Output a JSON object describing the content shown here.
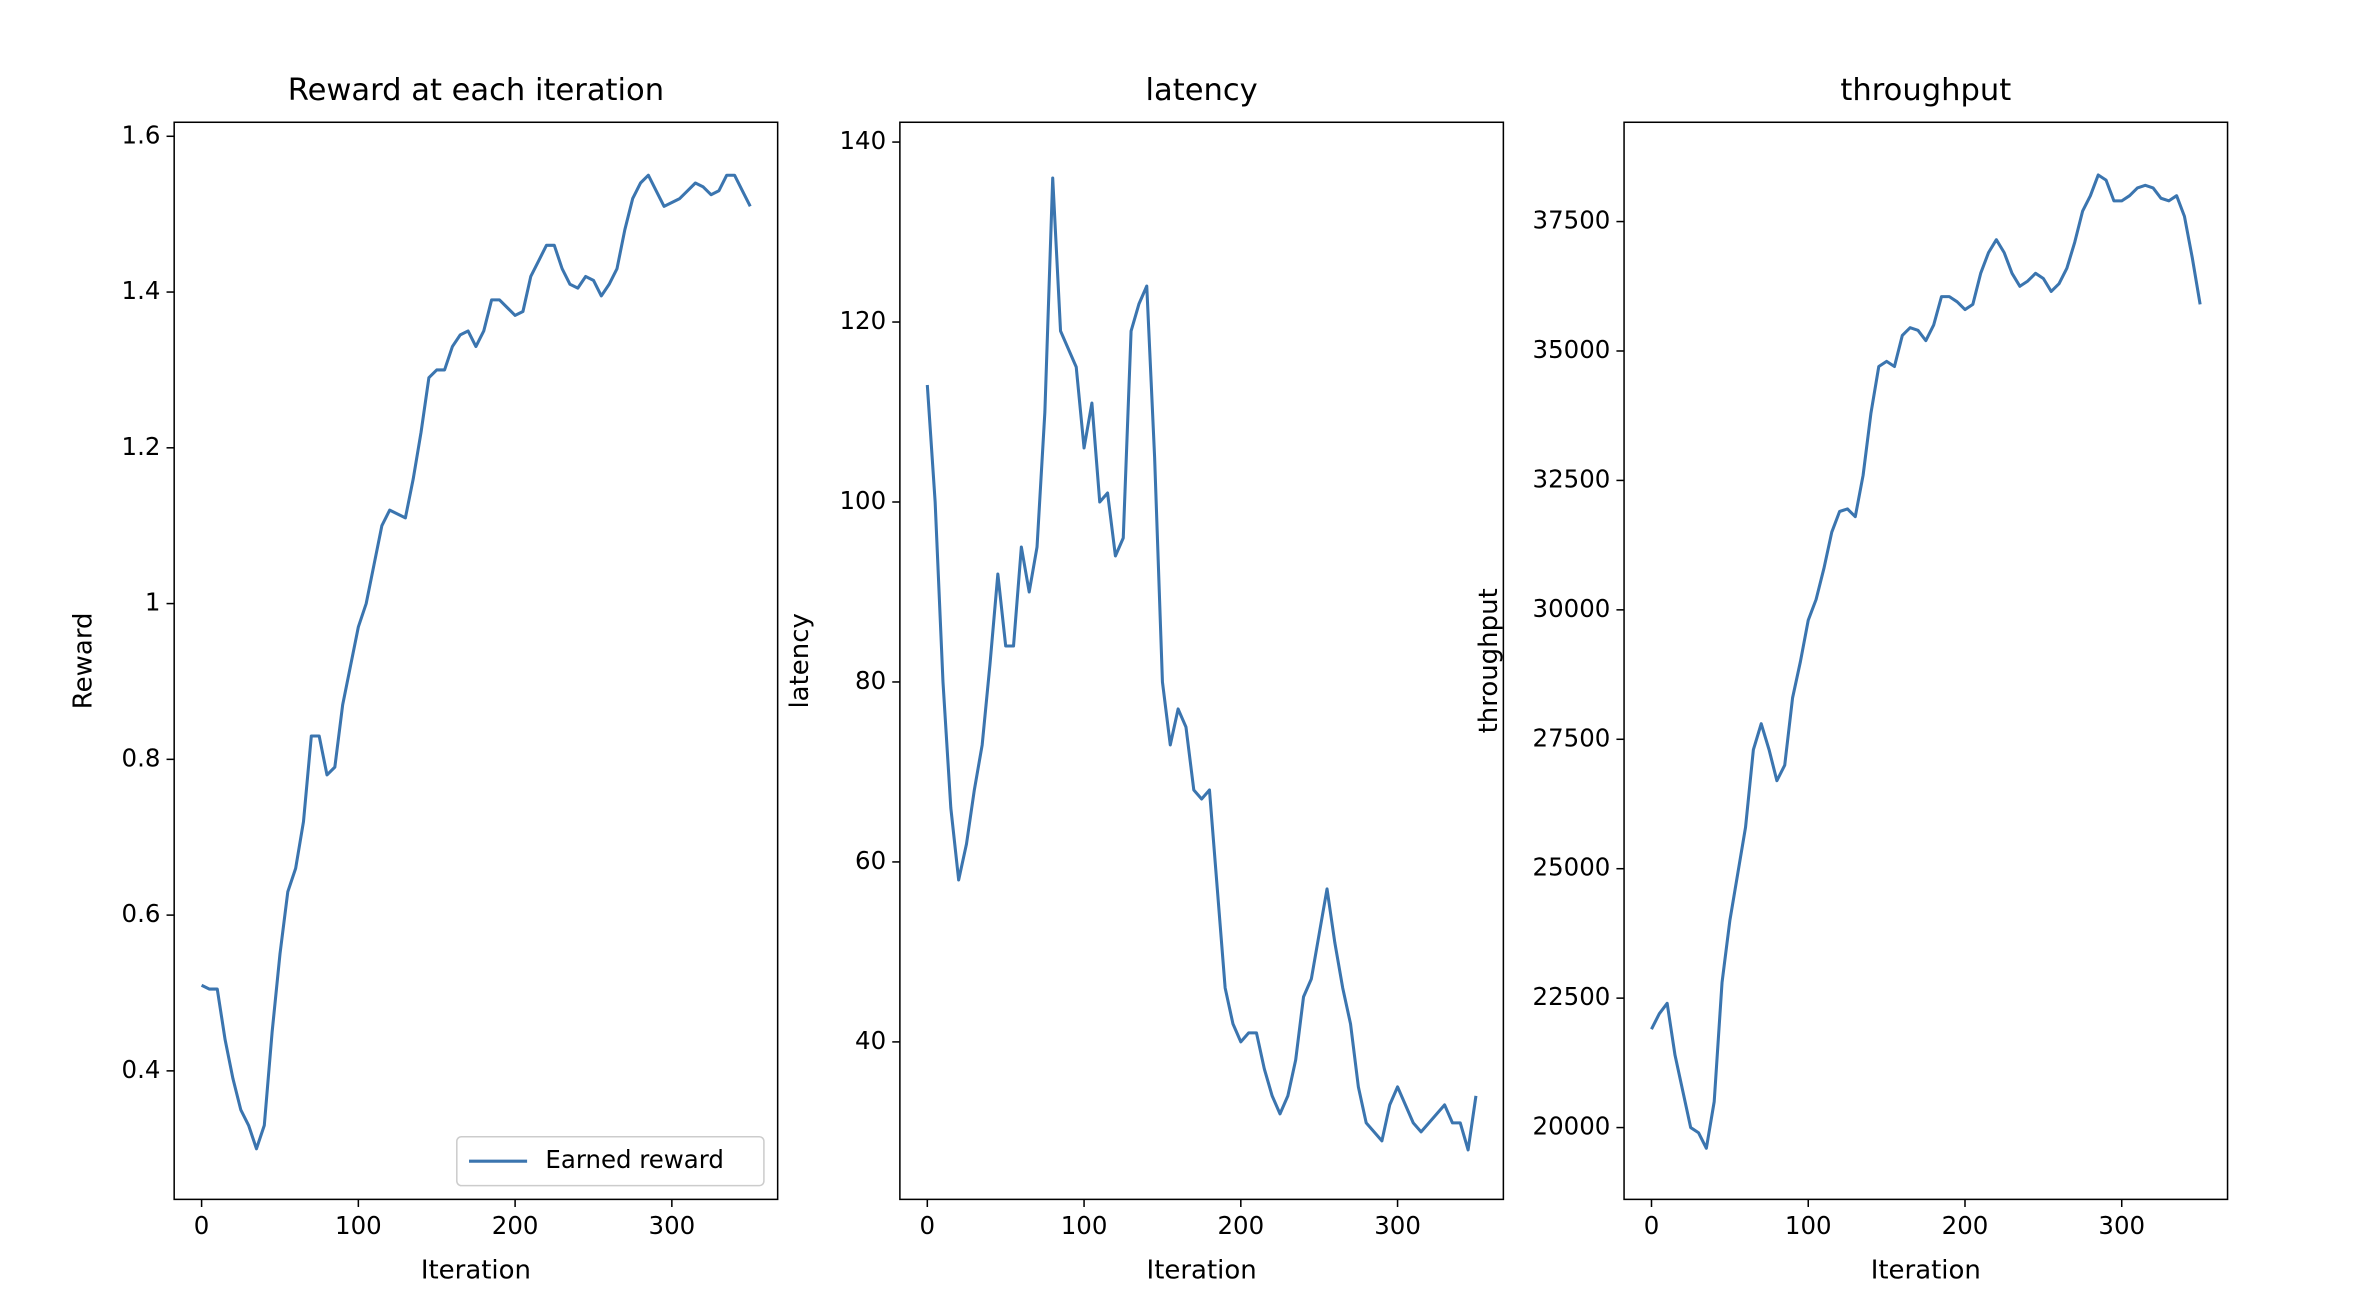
{
  "chart_data": [
    {
      "type": "line",
      "title": "Reward at each iteration",
      "xlabel": "Iteration",
      "ylabel": "Reward",
      "x": [
        0,
        5,
        10,
        15,
        20,
        25,
        30,
        35,
        40,
        45,
        50,
        55,
        60,
        65,
        70,
        75,
        80,
        85,
        90,
        95,
        100,
        105,
        110,
        115,
        120,
        125,
        130,
        135,
        140,
        145,
        150,
        155,
        160,
        165,
        170,
        175,
        180,
        185,
        190,
        195,
        200,
        205,
        210,
        215,
        220,
        225,
        230,
        235,
        240,
        245,
        250,
        255,
        260,
        265,
        270,
        275,
        280,
        285,
        290,
        295,
        300,
        305,
        310,
        315,
        320,
        325,
        330,
        335,
        340,
        345,
        350
      ],
      "series": [
        {
          "name": "Earned reward",
          "color": "#3b75af",
          "values": [
            0.51,
            0.505,
            0.505,
            0.44,
            0.39,
            0.35,
            0.33,
            0.3,
            0.33,
            0.45,
            0.55,
            0.63,
            0.66,
            0.72,
            0.83,
            0.83,
            0.78,
            0.79,
            0.87,
            0.92,
            0.97,
            1.0,
            1.05,
            1.1,
            1.12,
            1.115,
            1.11,
            1.16,
            1.22,
            1.29,
            1.3,
            1.3,
            1.33,
            1.345,
            1.35,
            1.33,
            1.35,
            1.39,
            1.39,
            1.38,
            1.37,
            1.375,
            1.42,
            1.44,
            1.46,
            1.46,
            1.43,
            1.41,
            1.405,
            1.42,
            1.415,
            1.395,
            1.41,
            1.43,
            1.48,
            1.52,
            1.54,
            1.55,
            1.53,
            1.51,
            1.515,
            1.52,
            1.53,
            1.54,
            1.535,
            1.525,
            1.53,
            1.55,
            1.55,
            1.53,
            1.51
          ]
        }
      ],
      "xlim": [
        -17.5,
        367.5
      ],
      "xticks": [
        0,
        100,
        200,
        300
      ],
      "ylim": [
        0.235,
        1.618
      ],
      "yticks": [
        0.4,
        0.6,
        0.8,
        1.0,
        1.2,
        1.4,
        1.6
      ],
      "legend": "lower right"
    },
    {
      "type": "line",
      "title": "latency",
      "xlabel": "Iteration",
      "ylabel": "latency",
      "x": [
        0,
        5,
        10,
        15,
        20,
        25,
        30,
        35,
        40,
        45,
        50,
        55,
        60,
        65,
        70,
        75,
        80,
        85,
        90,
        95,
        100,
        105,
        110,
        115,
        120,
        125,
        130,
        135,
        140,
        145,
        150,
        155,
        160,
        165,
        170,
        175,
        180,
        185,
        190,
        195,
        200,
        205,
        210,
        215,
        220,
        225,
        230,
        235,
        240,
        245,
        250,
        255,
        260,
        265,
        270,
        275,
        280,
        285,
        290,
        295,
        300,
        305,
        310,
        315,
        320,
        325,
        330,
        335,
        340,
        345,
        350
      ],
      "series": [
        {
          "color": "#3b75af",
          "values": [
            113,
            100,
            80,
            66,
            58,
            62,
            68,
            73,
            82,
            92,
            84,
            84,
            95,
            90,
            95,
            110,
            136,
            119,
            117,
            115,
            106,
            111,
            100,
            101,
            94,
            96,
            119,
            122,
            124,
            105,
            80,
            73,
            77,
            75,
            68,
            67,
            68,
            57,
            46,
            42,
            40,
            41,
            41,
            37,
            34,
            32,
            34,
            38,
            45,
            47,
            52,
            57,
            51,
            46,
            42,
            35,
            31,
            30,
            29,
            33,
            35,
            33,
            31,
            30,
            31,
            32,
            33,
            31,
            31,
            28,
            34
          ]
        }
      ],
      "xlim": [
        -17.5,
        367.5
      ],
      "xticks": [
        0,
        100,
        200,
        300
      ],
      "ylim": [
        22.5,
        142.2
      ],
      "yticks": [
        40,
        60,
        80,
        100,
        120,
        140
      ]
    },
    {
      "type": "line",
      "title": "throughput",
      "xlabel": "Iteration",
      "ylabel": "throughput",
      "x": [
        0,
        5,
        10,
        15,
        20,
        25,
        30,
        35,
        40,
        45,
        50,
        55,
        60,
        65,
        70,
        75,
        80,
        85,
        90,
        95,
        100,
        105,
        110,
        115,
        120,
        125,
        130,
        135,
        140,
        145,
        150,
        155,
        160,
        165,
        170,
        175,
        180,
        185,
        190,
        195,
        200,
        205,
        210,
        215,
        220,
        225,
        230,
        235,
        240,
        245,
        250,
        255,
        260,
        265,
        270,
        275,
        280,
        285,
        290,
        295,
        300,
        305,
        310,
        315,
        320,
        325,
        330,
        335,
        340,
        345,
        350
      ],
      "series": [
        {
          "color": "#3b75af",
          "values": [
            21900,
            22200,
            22400,
            21400,
            20700,
            20000,
            19900,
            19600,
            20500,
            22800,
            24000,
            24900,
            25800,
            27300,
            27800,
            27300,
            26700,
            27000,
            28300,
            29000,
            29800,
            30200,
            30800,
            31500,
            31900,
            31950,
            31800,
            32600,
            33800,
            34700,
            34800,
            34700,
            35300,
            35450,
            35400,
            35200,
            35500,
            36050,
            36050,
            35950,
            35800,
            35900,
            36500,
            36900,
            37150,
            36900,
            36500,
            36250,
            36350,
            36500,
            36400,
            36150,
            36300,
            36600,
            37100,
            37700,
            38000,
            38400,
            38300,
            37900,
            37900,
            38000,
            38150,
            38200,
            38150,
            37950,
            37900,
            38000,
            37600,
            36800,
            35900
          ]
        }
      ],
      "xlim": [
        -17.5,
        367.5
      ],
      "xticks": [
        0,
        100,
        200,
        300
      ],
      "ylim": [
        18613,
        39418
      ],
      "yticks": [
        20000,
        22500,
        25000,
        27500,
        30000,
        32500,
        35000,
        37500
      ]
    }
  ]
}
